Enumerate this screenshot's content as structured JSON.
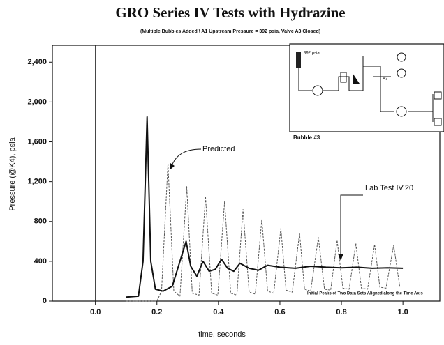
{
  "chart_data": {
    "type": "line",
    "title": "GRO Series IV Tests with Hydrazine",
    "subtitle": "(Multiple Bubbles Added \\ A1 Upstream Pressure = 392 psia, Valve A3 Closed)",
    "x_label": "time, seconds",
    "y_label": "Pressure (@K4), psia",
    "xlim": [
      -0.14,
      1.12
    ],
    "ylim": [
      0,
      2570
    ],
    "xticks": [
      {
        "value": 0,
        "label": "0.0"
      },
      0.2,
      0.4,
      0.6,
      0.8,
      {
        "value": 1,
        "label": "1.0"
      }
    ],
    "yticks": [
      0,
      400,
      800,
      {
        "value": 1200,
        "label": "1,200"
      },
      {
        "value": 1600,
        "label": "1,600"
      },
      {
        "value": 2000,
        "label": "2,000"
      },
      {
        "value": 2400,
        "label": "2,400"
      }
    ],
    "series": [
      {
        "name": "Predicted",
        "color": "#555555",
        "x": [
          0.1,
          0.2,
          0.215,
          0.236,
          0.255,
          0.275,
          0.297,
          0.315,
          0.337,
          0.358,
          0.378,
          0.398,
          0.42,
          0.44,
          0.46,
          0.48,
          0.5,
          0.52,
          0.541,
          0.56,
          0.58,
          0.603,
          0.62,
          0.64,
          0.664,
          0.68,
          0.7,
          0.725,
          0.745,
          0.765,
          0.786,
          0.805,
          0.825,
          0.847,
          0.865,
          0.885,
          0.908,
          0.925,
          0.945,
          0.97,
          0.99
        ],
        "values": [
          0,
          0,
          100,
          1380,
          100,
          50,
          1150,
          80,
          60,
          1050,
          80,
          60,
          1000,
          80,
          60,
          920,
          90,
          70,
          820,
          100,
          80,
          730,
          110,
          90,
          680,
          120,
          100,
          640,
          120,
          110,
          610,
          130,
          120,
          580,
          130,
          120,
          570,
          140,
          130,
          560,
          140
        ]
      },
      {
        "name": "Lab Test IV.20",
        "color": "#111111",
        "x": [
          0.1,
          0.14,
          0.155,
          0.168,
          0.18,
          0.195,
          0.22,
          0.25,
          0.28,
          0.295,
          0.31,
          0.33,
          0.35,
          0.37,
          0.39,
          0.41,
          0.43,
          0.45,
          0.47,
          0.5,
          0.53,
          0.56,
          0.6,
          0.65,
          0.7,
          0.75,
          0.8,
          0.85,
          0.9,
          0.95,
          1.0
        ],
        "values": [
          40,
          50,
          400,
          1850,
          400,
          120,
          100,
          150,
          450,
          600,
          350,
          250,
          400,
          300,
          320,
          420,
          330,
          300,
          380,
          330,
          310,
          360,
          340,
          330,
          350,
          340,
          335,
          340,
          330,
          335,
          330
        ]
      }
    ],
    "annotations": [
      "Initial Peaks of Two Data Sets Aligned along the Time Axis",
      "Bubble #3",
      "392 psia",
      "A3"
    ]
  }
}
